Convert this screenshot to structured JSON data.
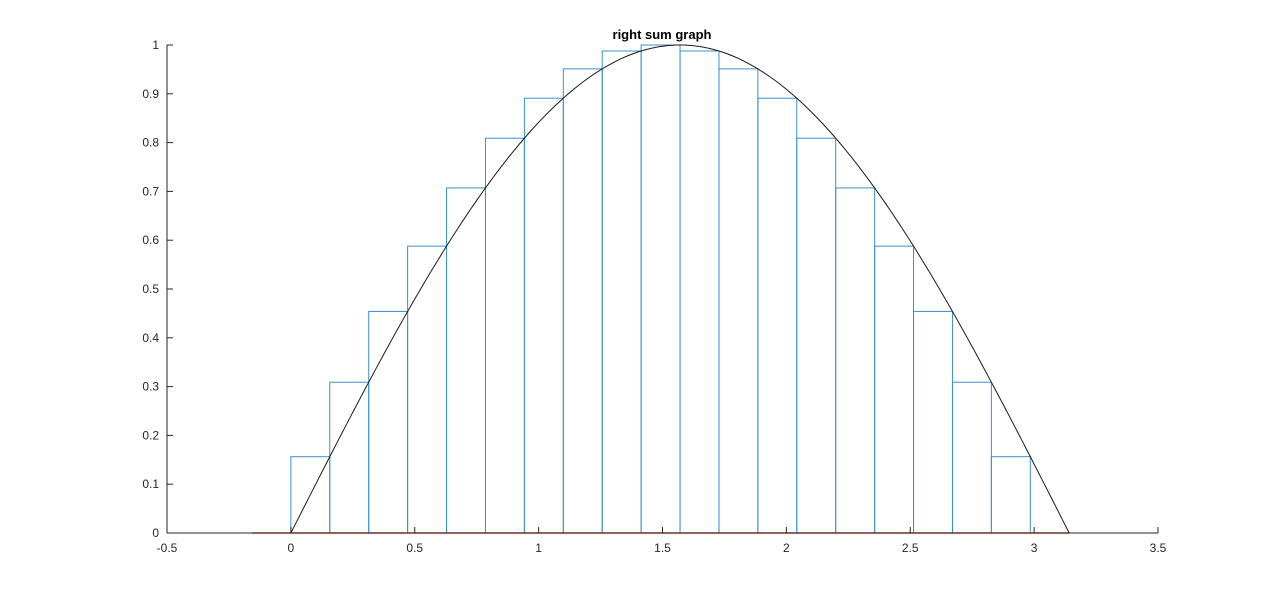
{
  "chart_data": {
    "type": "bar",
    "title": "right sum graph",
    "xlabel": "",
    "ylabel": "",
    "xlim": [
      -0.5,
      3.5
    ],
    "ylim": [
      0,
      1
    ],
    "xticks": [
      "-0.5",
      "0",
      "0.5",
      "1",
      "1.5",
      "2",
      "2.5",
      "3",
      "3.5"
    ],
    "yticks": [
      "0",
      "0.1",
      "0.2",
      "0.3",
      "0.4",
      "0.5",
      "0.6",
      "0.7",
      "0.8",
      "0.9",
      "1"
    ],
    "grid": false,
    "legend": "none",
    "bars": {
      "x_left": [
        0,
        0.1571,
        0.3142,
        0.4712,
        0.6283,
        0.7854,
        0.9425,
        1.0996,
        1.2566,
        1.4137,
        1.5708,
        1.7279,
        1.885,
        2.042,
        2.1991,
        2.3562,
        2.5133,
        2.6704,
        2.8274,
        2.9845
      ],
      "width": 0.1571,
      "values": [
        0.1564,
        0.309,
        0.454,
        0.5878,
        0.7071,
        0.809,
        0.891,
        0.9511,
        0.9877,
        1.0,
        0.9877,
        0.9511,
        0.891,
        0.809,
        0.7071,
        0.5878,
        0.454,
        0.309,
        0.1564,
        0.0
      ]
    },
    "function_curve": {
      "name": "sin(x)",
      "x_range": [
        0,
        3.1416
      ]
    },
    "baseline": {
      "x_range": [
        -0.1571,
        3.1416
      ],
      "y": 0
    },
    "colors": {
      "bars": "#3b8fd2",
      "curve": "#1a1a1a",
      "baseline": "#d95319",
      "axis": "#262626"
    }
  }
}
